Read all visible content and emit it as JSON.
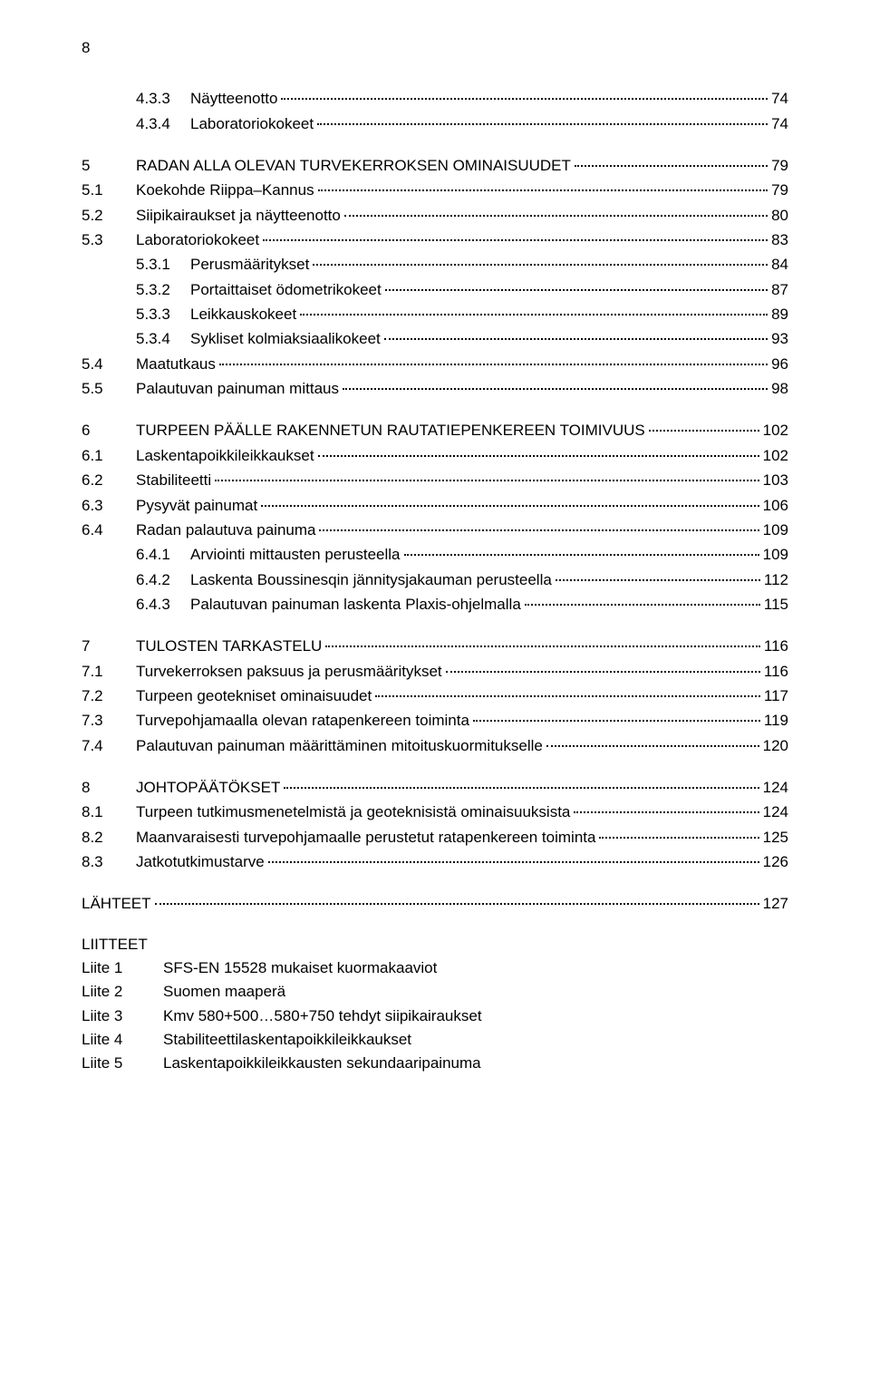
{
  "pageNumber": "8",
  "entries": [
    {
      "gap": false,
      "indent": 1,
      "num": "4.3.3",
      "title": "Näytteenotto",
      "page": "74"
    },
    {
      "gap": false,
      "indent": 1,
      "num": "4.3.4",
      "title": "Laboratoriokokeet",
      "page": "74"
    },
    {
      "gap": true,
      "indent": 0,
      "num": "5",
      "title": "RADAN ALLA OLEVAN TURVEKERROKSEN OMINAISUUDET",
      "page": "79"
    },
    {
      "gap": false,
      "indent": 0,
      "num": "5.1",
      "title": "Koekohde Riippa–Kannus",
      "page": "79"
    },
    {
      "gap": false,
      "indent": 0,
      "num": "5.2",
      "title": "Siipikairaukset ja näytteenotto",
      "page": "80"
    },
    {
      "gap": false,
      "indent": 0,
      "num": "5.3",
      "title": "Laboratoriokokeet",
      "page": "83"
    },
    {
      "gap": false,
      "indent": 1,
      "num": "5.3.1",
      "title": "Perusmääritykset",
      "page": "84"
    },
    {
      "gap": false,
      "indent": 1,
      "num": "5.3.2",
      "title": "Portaittaiset ödometrikokeet",
      "page": "87"
    },
    {
      "gap": false,
      "indent": 1,
      "num": "5.3.3",
      "title": "Leikkauskokeet",
      "page": "89"
    },
    {
      "gap": false,
      "indent": 1,
      "num": "5.3.4",
      "title": "Sykliset kolmiaksiaalikokeet",
      "page": "93"
    },
    {
      "gap": false,
      "indent": 0,
      "num": "5.4",
      "title": "Maatutkaus",
      "page": "96"
    },
    {
      "gap": false,
      "indent": 0,
      "num": "5.5",
      "title": "Palautuvan painuman mittaus",
      "page": "98"
    },
    {
      "gap": true,
      "indent": 0,
      "num": "6",
      "title": "TURPEEN PÄÄLLE RAKENNETUN RAUTATIEPENKEREEN TOIMIVUUS",
      "page": "102"
    },
    {
      "gap": false,
      "indent": 0,
      "num": "6.1",
      "title": "Laskentapoikkileikkaukset",
      "page": "102"
    },
    {
      "gap": false,
      "indent": 0,
      "num": "6.2",
      "title": "Stabiliteetti",
      "page": "103"
    },
    {
      "gap": false,
      "indent": 0,
      "num": "6.3",
      "title": "Pysyvät painumat",
      "page": "106"
    },
    {
      "gap": false,
      "indent": 0,
      "num": "6.4",
      "title": "Radan palautuva painuma",
      "page": "109"
    },
    {
      "gap": false,
      "indent": 1,
      "num": "6.4.1",
      "title": "Arviointi mittausten perusteella",
      "page": "109"
    },
    {
      "gap": false,
      "indent": 1,
      "num": "6.4.2",
      "title": "Laskenta Boussinesqin jännitysjakauman perusteella",
      "page": "112"
    },
    {
      "gap": false,
      "indent": 1,
      "num": "6.4.3",
      "title": "Palautuvan painuman laskenta Plaxis-ohjelmalla",
      "page": "115"
    },
    {
      "gap": true,
      "indent": 0,
      "num": "7",
      "title": "TULOSTEN TARKASTELU",
      "page": "116"
    },
    {
      "gap": false,
      "indent": 0,
      "num": "7.1",
      "title": "Turvekerroksen paksuus ja perusmääritykset",
      "page": "116"
    },
    {
      "gap": false,
      "indent": 0,
      "num": "7.2",
      "title": "Turpeen geotekniset ominaisuudet",
      "page": "117"
    },
    {
      "gap": false,
      "indent": 0,
      "num": "7.3",
      "title": "Turvepohjamaalla olevan ratapenkereen toiminta",
      "page": "119"
    },
    {
      "gap": false,
      "indent": 0,
      "num": "7.4",
      "title": "Palautuvan painuman määrittäminen mitoituskuormitukselle",
      "page": "120"
    },
    {
      "gap": true,
      "indent": 0,
      "num": "8",
      "title": "JOHTOPÄÄTÖKSET",
      "page": "124"
    },
    {
      "gap": false,
      "indent": 0,
      "num": "8.1",
      "title": "Turpeen tutkimusmenetelmistä ja geoteknisistä ominaisuuksista",
      "page": "124"
    },
    {
      "gap": false,
      "indent": 0,
      "num": "8.2",
      "title": "Maanvaraisesti turvepohjamaalle perustetut ratapenkereen toiminta",
      "page": "125"
    },
    {
      "gap": false,
      "indent": 0,
      "num": "8.3",
      "title": "Jatkotutkimustarve",
      "page": "126"
    }
  ],
  "lahteet": {
    "title": "LÄHTEET",
    "page": "127"
  },
  "liitteet": {
    "heading": "LIITTEET",
    "items": [
      {
        "label": "Liite 1",
        "text": "SFS-EN 15528 mukaiset kuormakaaviot"
      },
      {
        "label": "Liite 2",
        "text": "Suomen maaperä"
      },
      {
        "label": "Liite 3",
        "text": "Kmv 580+500…580+750 tehdyt siipikairaukset"
      },
      {
        "label": "Liite 4",
        "text": "Stabiliteettilaskentapoikkileikkaukset"
      },
      {
        "label": "Liite 5",
        "text": "Laskentapoikkileikkausten sekundaaripainuma"
      }
    ]
  }
}
